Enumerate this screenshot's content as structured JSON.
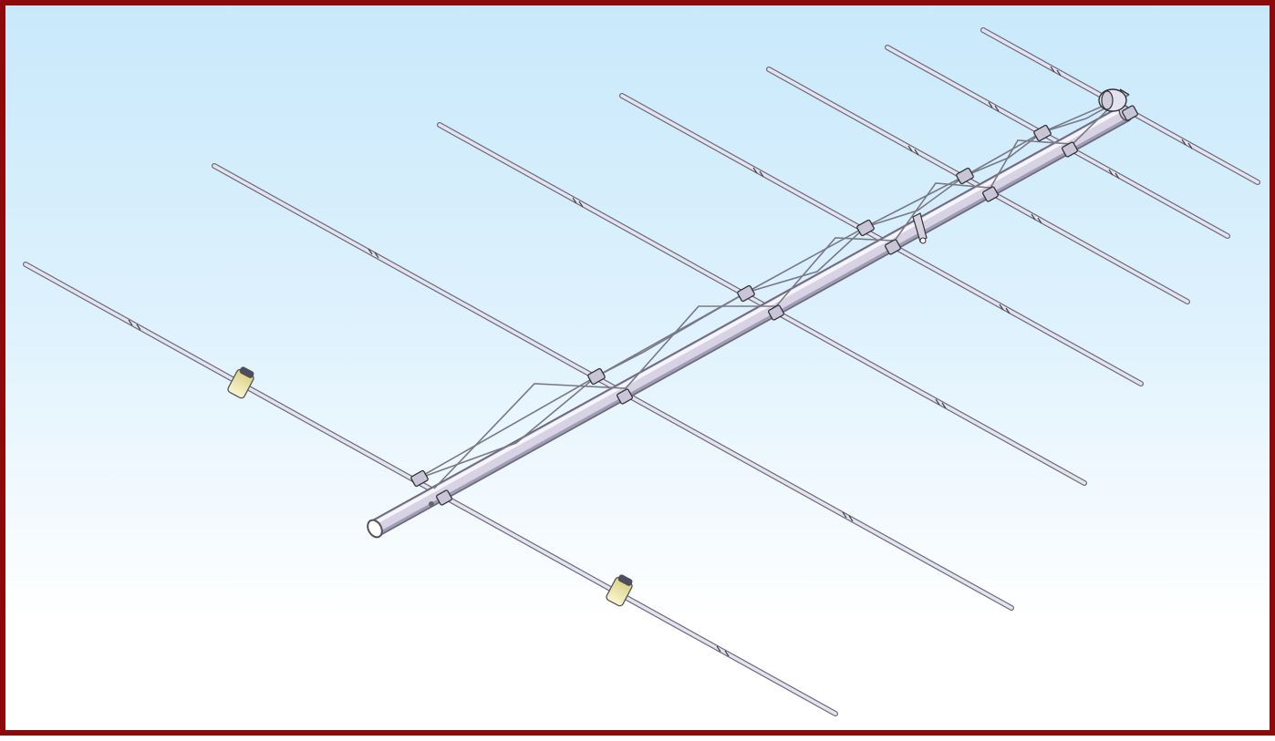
{
  "diagram": {
    "subject": "antenna-cad-model",
    "elements_count": 8,
    "colors": {
      "frame": "#8e0a0a",
      "background_top": "#c9e9fb",
      "background_bottom": "#ffffff",
      "metal": "#d9d6e6",
      "metal_dark": "#6a6a7a",
      "insulator": "#f1eab0",
      "insulator_cap": "#4e4e5a"
    }
  }
}
